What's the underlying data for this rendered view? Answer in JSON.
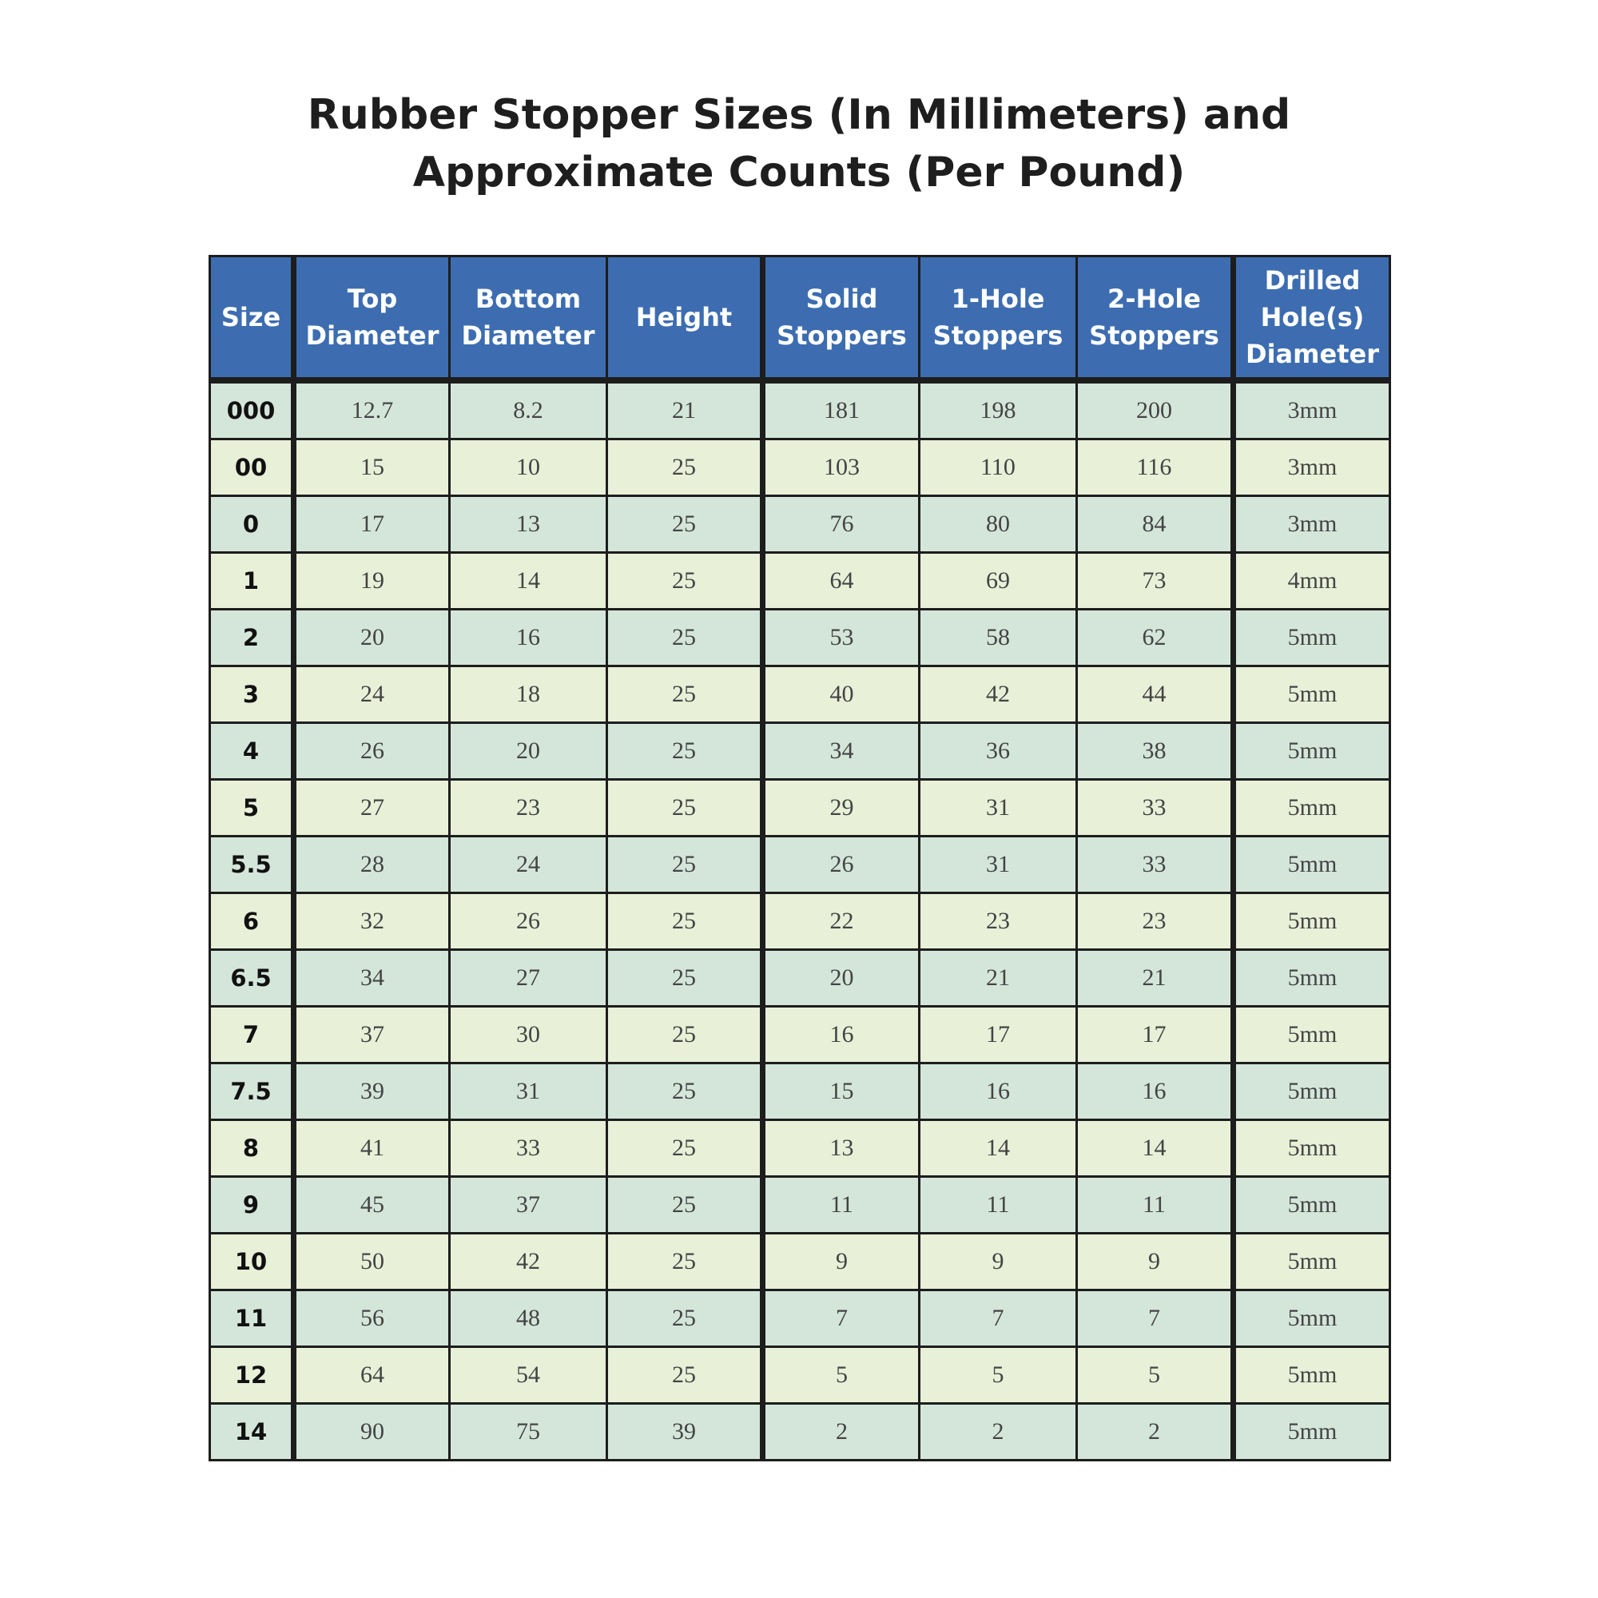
{
  "title": {
    "line1": "Rubber Stopper Sizes (In Millimeters) and",
    "line2": "Approximate Counts (Per Pound)"
  },
  "colors": {
    "header": "#3d6db0",
    "row_a": "#d4e6da",
    "row_b": "#e8f0d8"
  },
  "headers": [
    [
      "Size"
    ],
    [
      "Top",
      "Diameter"
    ],
    [
      "Bottom",
      "Diameter"
    ],
    [
      "Height"
    ],
    [
      "Solid",
      "Stoppers"
    ],
    [
      "1-Hole",
      "Stoppers"
    ],
    [
      "2-Hole",
      "Stoppers"
    ],
    [
      "Drilled",
      "Hole(s)",
      "Diameter"
    ]
  ],
  "rows": [
    [
      "000",
      "12.7",
      "8.2",
      "21",
      "181",
      "198",
      "200",
      "3mm"
    ],
    [
      "00",
      "15",
      "10",
      "25",
      "103",
      "110",
      "116",
      "3mm"
    ],
    [
      "0",
      "17",
      "13",
      "25",
      "76",
      "80",
      "84",
      "3mm"
    ],
    [
      "1",
      "19",
      "14",
      "25",
      "64",
      "69",
      "73",
      "4mm"
    ],
    [
      "2",
      "20",
      "16",
      "25",
      "53",
      "58",
      "62",
      "5mm"
    ],
    [
      "3",
      "24",
      "18",
      "25",
      "40",
      "42",
      "44",
      "5mm"
    ],
    [
      "4",
      "26",
      "20",
      "25",
      "34",
      "36",
      "38",
      "5mm"
    ],
    [
      "5",
      "27",
      "23",
      "25",
      "29",
      "31",
      "33",
      "5mm"
    ],
    [
      "5.5",
      "28",
      "24",
      "25",
      "26",
      "31",
      "33",
      "5mm"
    ],
    [
      "6",
      "32",
      "26",
      "25",
      "22",
      "23",
      "23",
      "5mm"
    ],
    [
      "6.5",
      "34",
      "27",
      "25",
      "20",
      "21",
      "21",
      "5mm"
    ],
    [
      "7",
      "37",
      "30",
      "25",
      "16",
      "17",
      "17",
      "5mm"
    ],
    [
      "7.5",
      "39",
      "31",
      "25",
      "15",
      "16",
      "16",
      "5mm"
    ],
    [
      "8",
      "41",
      "33",
      "25",
      "13",
      "14",
      "14",
      "5mm"
    ],
    [
      "9",
      "45",
      "37",
      "25",
      "11",
      "11",
      "11",
      "5mm"
    ],
    [
      "10",
      "50",
      "42",
      "25",
      "9",
      "9",
      "9",
      "5mm"
    ],
    [
      "11",
      "56",
      "48",
      "25",
      "7",
      "7",
      "7",
      "5mm"
    ],
    [
      "12",
      "64",
      "54",
      "25",
      "5",
      "5",
      "5",
      "5mm"
    ],
    [
      "14",
      "90",
      "75",
      "39",
      "2",
      "2",
      "2",
      "5mm"
    ]
  ]
}
